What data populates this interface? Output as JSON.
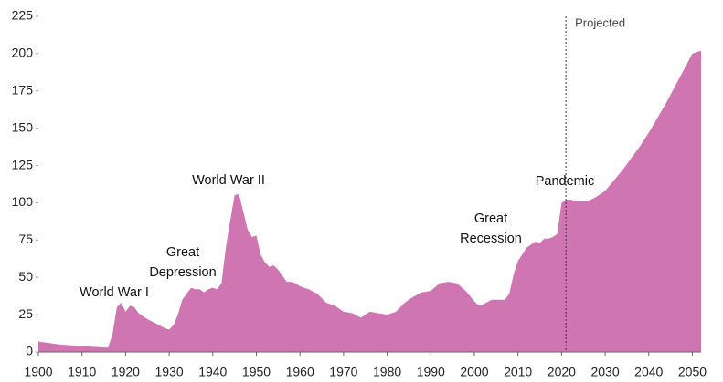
{
  "chart_data": {
    "type": "area",
    "x": [
      1900,
      1905,
      1910,
      1915,
      1916,
      1917,
      1918,
      1919,
      1920,
      1921,
      1922,
      1923,
      1925,
      1927,
      1929,
      1930,
      1931,
      1932,
      1933,
      1934,
      1935,
      1936,
      1937,
      1938,
      1939,
      1940,
      1941,
      1942,
      1943,
      1944,
      1945,
      1946,
      1947,
      1948,
      1949,
      1950,
      1951,
      1952,
      1953,
      1954,
      1955,
      1956,
      1957,
      1958,
      1959,
      1960,
      1962,
      1964,
      1966,
      1968,
      1970,
      1972,
      1974,
      1976,
      1978,
      1980,
      1982,
      1984,
      1986,
      1988,
      1990,
      1992,
      1994,
      1996,
      1998,
      2000,
      2001,
      2002,
      2004,
      2006,
      2007,
      2008,
      2009,
      2010,
      2012,
      2014,
      2015,
      2016,
      2017,
      2018,
      2019,
      2020,
      2021,
      2022,
      2024,
      2026,
      2028,
      2030,
      2032,
      2034,
      2036,
      2038,
      2040,
      2042,
      2044,
      2046,
      2048,
      2050,
      2052
    ],
    "values": [
      7,
      5,
      4,
      3,
      3,
      12,
      30,
      33,
      27,
      31,
      30,
      26,
      22,
      19,
      16,
      15,
      18,
      25,
      35,
      39,
      43,
      42,
      42,
      40,
      42,
      43,
      42,
      46,
      70,
      88,
      105,
      106,
      94,
      82,
      77,
      78,
      65,
      60,
      57,
      58,
      55,
      51,
      47,
      47,
      46,
      44,
      42,
      39,
      33,
      31,
      27,
      26,
      23,
      27,
      26,
      25,
      27,
      33,
      37,
      40,
      41,
      46,
      47,
      46,
      41,
      34,
      31,
      32,
      35,
      35,
      35,
      39,
      52,
      61,
      70,
      74,
      73,
      76,
      76,
      77,
      79,
      100,
      102,
      102,
      101,
      101,
      104,
      108,
      115,
      122,
      130,
      138,
      147,
      157,
      167,
      178,
      189,
      200,
      202
    ],
    "color": "#cf76b2",
    "xlim": [
      1900,
      2052
    ],
    "ylim": [
      0,
      225
    ],
    "xticks": [
      1900,
      1910,
      1920,
      1930,
      1940,
      1950,
      1960,
      1970,
      1980,
      1990,
      2000,
      2010,
      2020,
      2030,
      2040,
      2050
    ],
    "yticks": [
      0,
      25,
      50,
      75,
      100,
      125,
      150,
      175,
      200,
      225
    ],
    "projection_start": 2021,
    "projection_label": "Projected",
    "annotations": [
      [
        "World War I"
      ],
      [
        "Great",
        "Depression"
      ],
      [
        "World War II"
      ],
      [
        "Great",
        "Recession"
      ],
      [
        "Pandemic"
      ]
    ]
  }
}
